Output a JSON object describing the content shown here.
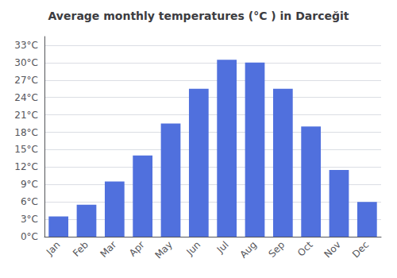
{
  "chart_data": {
    "type": "bar",
    "title": "Average monthly temperatures (°C ) in Darceğit",
    "categories": [
      "Jan",
      "Feb",
      "Mar",
      "Apr",
      "May",
      "Jun",
      "Jul",
      "Aug",
      "Sep",
      "Oct",
      "Nov",
      "Dec"
    ],
    "values": [
      3.5,
      5.5,
      9.5,
      14.0,
      19.5,
      25.5,
      30.5,
      30.0,
      25.5,
      19.0,
      11.5,
      6.0
    ],
    "ylim": [
      0,
      34.5
    ],
    "yticks": [
      {
        "value": 0,
        "label": "0°C"
      },
      {
        "value": 3,
        "label": "3°C"
      },
      {
        "value": 6,
        "label": "6°C"
      },
      {
        "value": 9,
        "label": "9°C"
      },
      {
        "value": 12,
        "label": "12°C"
      },
      {
        "value": 15,
        "label": "15°C"
      },
      {
        "value": 18,
        "label": "18°C"
      },
      {
        "value": 21,
        "label": "21°C"
      },
      {
        "value": 24,
        "label": "24°C"
      },
      {
        "value": 27,
        "label": "27°C"
      },
      {
        "value": 30,
        "label": "30°C"
      },
      {
        "value": 33,
        "label": "33°C"
      }
    ],
    "grid": true
  }
}
